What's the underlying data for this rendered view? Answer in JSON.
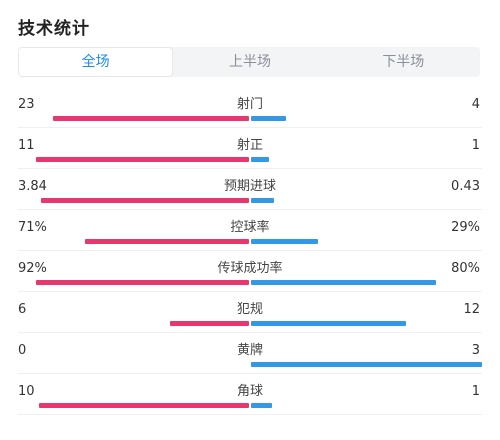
{
  "title": "技术统计",
  "tabs": [
    {
      "label": "全场",
      "active": true
    },
    {
      "label": "上半场",
      "active": false
    },
    {
      "label": "下半场",
      "active": false
    }
  ],
  "colors": {
    "home": "#e8366e",
    "away": "#3399e6",
    "accent": "#1b8cf5"
  },
  "stats": [
    {
      "label": "射门",
      "home": "23",
      "away": "4",
      "home_frac": 0.85,
      "away_frac": 0.15
    },
    {
      "label": "射正",
      "home": "11",
      "away": "1",
      "home_frac": 0.92,
      "away_frac": 0.08
    },
    {
      "label": "预期进球",
      "home": "3.84",
      "away": "0.43",
      "home_frac": 0.9,
      "away_frac": 0.1
    },
    {
      "label": "控球率",
      "home": "71%",
      "away": "29%",
      "home_frac": 0.71,
      "away_frac": 0.29
    },
    {
      "label": "传球成功率",
      "home": "92%",
      "away": "80%",
      "home_frac": 0.92,
      "away_frac": 0.8
    },
    {
      "label": "犯规",
      "home": "6",
      "away": "12",
      "home_frac": 0.34,
      "away_frac": 0.67
    },
    {
      "label": "黄牌",
      "home": "0",
      "away": "3",
      "home_frac": 0.0,
      "away_frac": 1.0
    },
    {
      "label": "角球",
      "home": "10",
      "away": "1",
      "home_frac": 0.91,
      "away_frac": 0.09
    }
  ]
}
